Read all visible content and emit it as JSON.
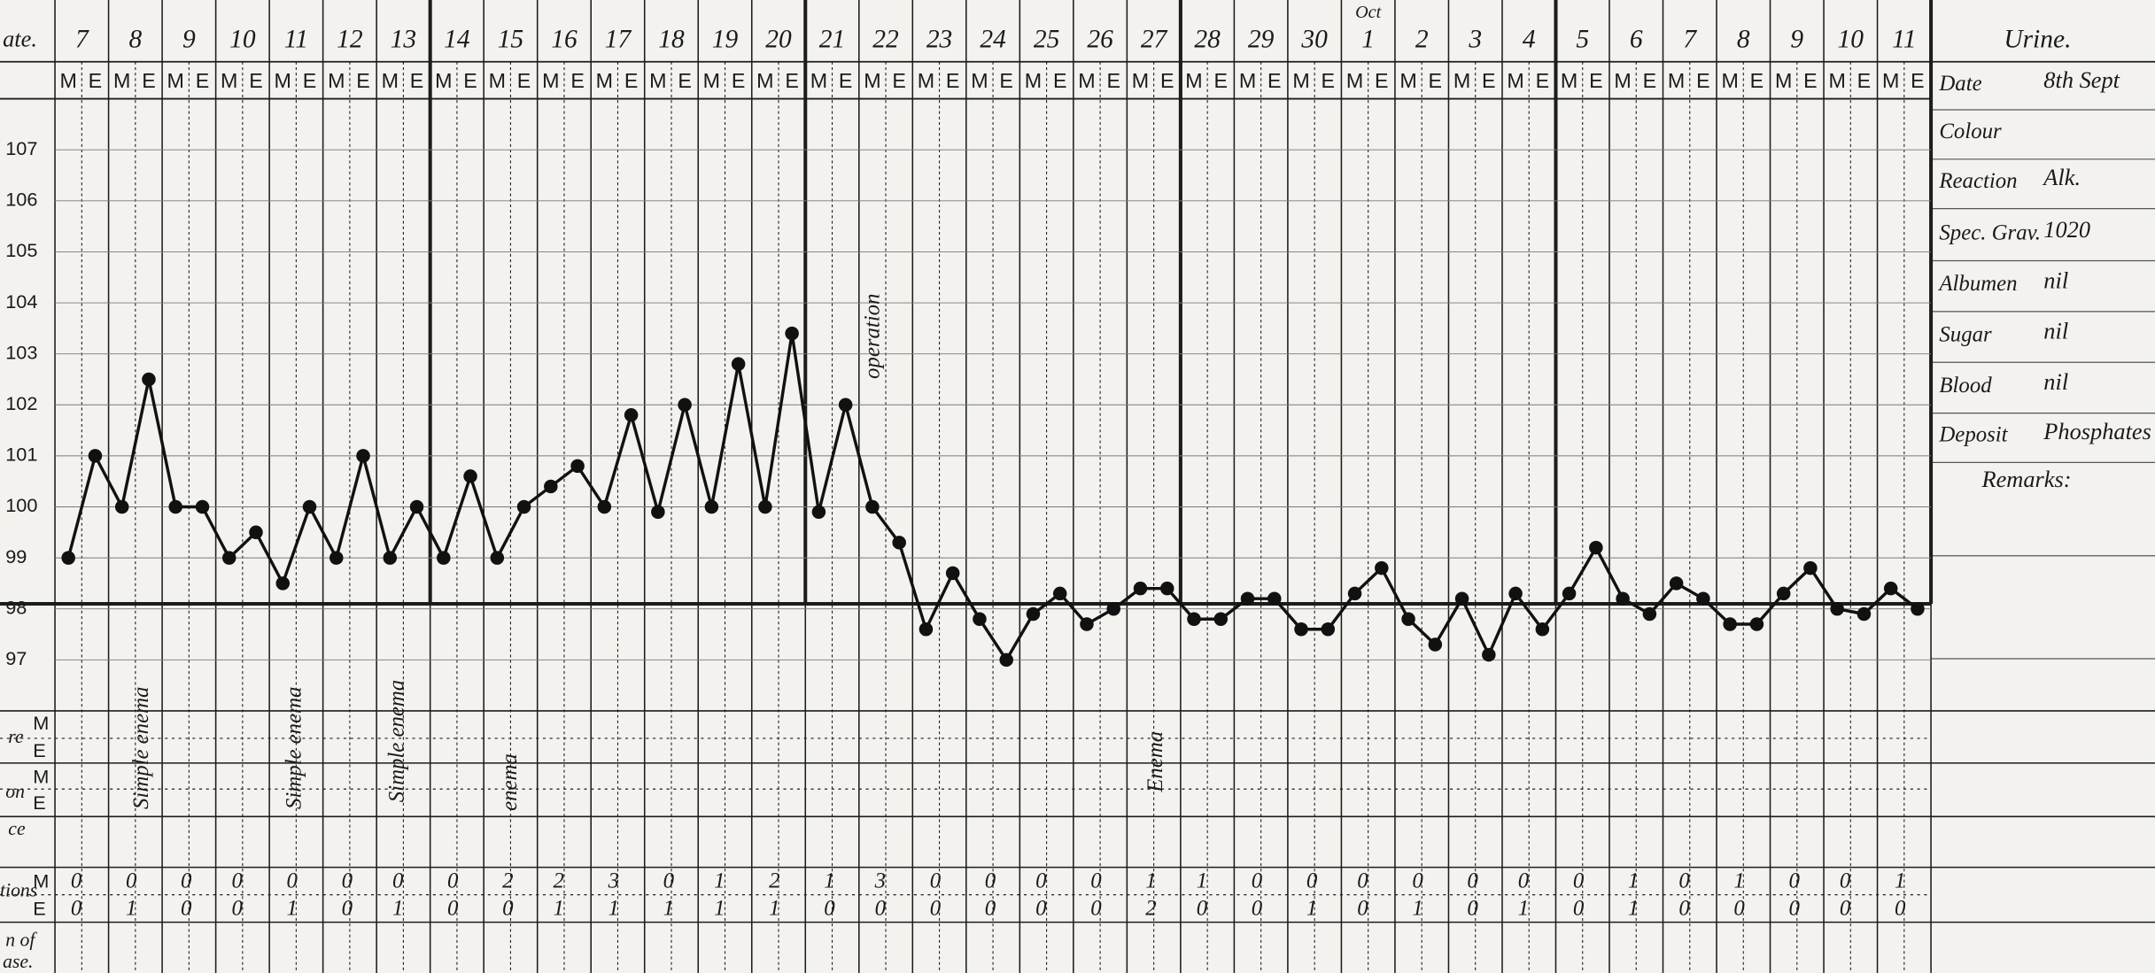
{
  "header": {
    "row_label": "ate.",
    "month_note": "Oct",
    "dates": [
      "7",
      "8",
      "9",
      "10",
      "11",
      "12",
      "13",
      "14",
      "15",
      "16",
      "17",
      "18",
      "19",
      "20",
      "21",
      "22",
      "23",
      "24",
      "25",
      "26",
      "27",
      "28",
      "29",
      "30",
      "1",
      "2",
      "3",
      "4",
      "5",
      "6",
      "7",
      "8",
      "9",
      "10",
      "11"
    ]
  },
  "chart_data": {
    "type": "line",
    "categories": [
      "M",
      "E",
      "M",
      "E",
      "M",
      "E",
      "M",
      "E",
      "M",
      "E",
      "M",
      "E",
      "M",
      "E",
      "M",
      "E",
      "M",
      "E",
      "M",
      "E",
      "M",
      "E",
      "M",
      "E",
      "M",
      "E",
      "M",
      "E",
      "M",
      "E",
      "M",
      "E",
      "M",
      "E",
      "M",
      "E",
      "M",
      "E",
      "M",
      "E",
      "M",
      "E",
      "M",
      "E",
      "M",
      "E",
      "M",
      "E",
      "M",
      "E",
      "M",
      "E",
      "M",
      "E",
      "M",
      "E",
      "M",
      "E",
      "M",
      "E",
      "M",
      "E",
      "M",
      "E",
      "M",
      "E",
      "M",
      "E",
      "M",
      "E"
    ],
    "values": [
      99.0,
      101.0,
      100.0,
      102.5,
      100.0,
      100.0,
      99.0,
      99.5,
      98.5,
      100.0,
      99.0,
      101.0,
      99.0,
      100.0,
      99.0,
      100.6,
      99.0,
      100.0,
      100.4,
      100.8,
      100.0,
      101.8,
      99.9,
      102.0,
      100.0,
      102.8,
      100.0,
      103.4,
      99.9,
      102.0,
      100.0,
      99.3,
      97.6,
      98.7,
      97.8,
      97.0,
      97.9,
      98.3,
      97.7,
      98.0,
      98.4,
      98.4,
      97.8,
      97.8,
      98.2,
      98.2,
      97.6,
      97.6,
      98.3,
      98.8,
      97.8,
      97.3,
      98.2,
      97.1,
      98.3,
      97.6,
      98.3,
      99.2,
      98.2,
      97.9,
      98.5,
      98.2,
      97.7,
      97.7,
      98.3,
      98.8,
      98.0,
      97.9,
      98.4,
      98.0
    ],
    "ylim": [
      96,
      108
    ],
    "yticks": [
      97,
      98,
      99,
      100,
      101,
      102,
      103,
      104,
      105,
      106,
      107
    ],
    "reference_line": 98.1,
    "color": "#111111",
    "grid": true,
    "annotations": [
      "Simple enema",
      "Simple enema",
      "Simple enema",
      "enema",
      "Enema",
      "operation"
    ]
  },
  "row_labels": {
    "first": "re",
    "second": "on",
    "third": "ce",
    "motions": "tions",
    "last_1": "n of",
    "last_2": "ase."
  },
  "motions": {
    "M": [
      0,
      0,
      0,
      0,
      0,
      0,
      0,
      0,
      2,
      2,
      3,
      0,
      1,
      2,
      1,
      3,
      0,
      0,
      0,
      0,
      1,
      1,
      0,
      0,
      0,
      0,
      0,
      0,
      0,
      1,
      0,
      1,
      0,
      0,
      1
    ],
    "E": [
      0,
      1,
      0,
      0,
      1,
      0,
      1,
      0,
      0,
      1,
      1,
      1,
      1,
      1,
      0,
      0,
      0,
      0,
      0,
      0,
      2,
      0,
      0,
      1,
      0,
      1,
      0,
      1,
      0,
      1,
      0,
      0,
      0,
      0,
      0
    ]
  },
  "urine": {
    "title": "Urine.",
    "rows": [
      {
        "label": "Date",
        "value": "8th Sept"
      },
      {
        "label": "Colour"
      },
      {
        "label": "Reaction",
        "value": "Alk."
      },
      {
        "label": "Spec. Grav.",
        "value": "1020"
      },
      {
        "label": "Albumen",
        "value": "nil"
      },
      {
        "label": "Sugar",
        "value": "nil"
      },
      {
        "label": "Blood",
        "value": "nil"
      },
      {
        "label": "Deposit",
        "value": "Phosphates"
      }
    ],
    "remarks": "Remarks:"
  }
}
